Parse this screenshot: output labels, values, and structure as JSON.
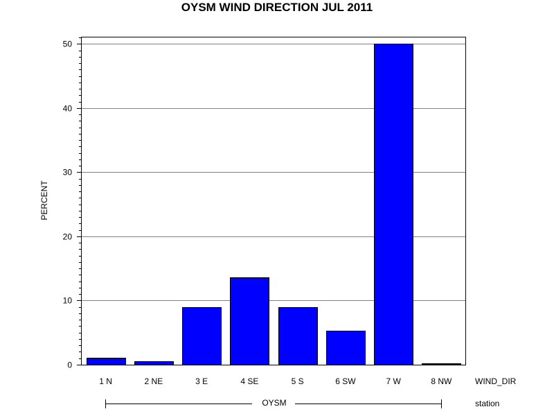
{
  "chart_data": {
    "type": "bar",
    "title": "OYSM WIND DIRECTION JUL 2011",
    "ylabel": "PERCENT",
    "xlabel": "WIND_DIR",
    "group_label": "station",
    "group_value": "OYSM",
    "categories": [
      "1 N",
      "2 NE",
      "3 E",
      "4 SE",
      "5 S",
      "6 SW",
      "7 W",
      "8 NW"
    ],
    "values": [
      1.1,
      0.5,
      9.0,
      13.6,
      9.0,
      5.3,
      50.0,
      0.2
    ],
    "yticks": [
      0,
      10,
      20,
      30,
      40,
      50
    ],
    "ylim": [
      0,
      51
    ],
    "grid": true,
    "colors": {
      "bar": "#0000ff",
      "bar_outline": "#000000",
      "grid": "#808080",
      "frame": "#000000"
    }
  }
}
